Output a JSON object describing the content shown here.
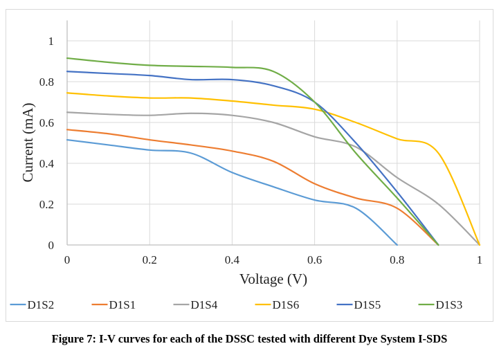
{
  "caption": "Figure 7: I-V curves for each of the DSSC tested with different Dye System I-SDS",
  "chart_data": {
    "type": "line",
    "title": "",
    "xlabel": "Voltage (V)",
    "ylabel": "Current (mA)",
    "xlim": [
      0,
      1
    ],
    "ylim": [
      0,
      1.1
    ],
    "xticks": [
      0,
      0.2,
      0.4,
      0.6,
      0.8,
      1
    ],
    "yticks": [
      0,
      0.2,
      0.4,
      0.6,
      0.8,
      1
    ],
    "xtick_labels": [
      "0",
      "0.2",
      "0.4",
      "0.6",
      "0.8",
      "1"
    ],
    "ytick_labels": [
      "0",
      "0.2",
      "0.4",
      "0.6",
      "0.8",
      "1"
    ],
    "grid": true,
    "smooth": true,
    "legend_position": "bottom",
    "series": [
      {
        "name": "D1S2",
        "color": "#5b9bd5",
        "x": [
          0,
          0.1,
          0.2,
          0.3,
          0.4,
          0.5,
          0.6,
          0.7,
          0.8
        ],
        "y": [
          0.515,
          0.49,
          0.465,
          0.45,
          0.355,
          0.285,
          0.22,
          0.18,
          0
        ]
      },
      {
        "name": "D1S1",
        "color": "#ed7d31",
        "x": [
          0,
          0.1,
          0.2,
          0.3,
          0.4,
          0.5,
          0.6,
          0.7,
          0.8,
          0.9
        ],
        "y": [
          0.565,
          0.545,
          0.515,
          0.49,
          0.46,
          0.41,
          0.3,
          0.23,
          0.18,
          0
        ]
      },
      {
        "name": "D1S4",
        "color": "#a5a5a5",
        "x": [
          0,
          0.1,
          0.2,
          0.3,
          0.4,
          0.5,
          0.6,
          0.7,
          0.8,
          0.9,
          1.0
        ],
        "y": [
          0.65,
          0.64,
          0.635,
          0.645,
          0.635,
          0.6,
          0.53,
          0.48,
          0.33,
          0.2,
          0
        ]
      },
      {
        "name": "D1S6",
        "color": "#ffc000",
        "x": [
          0,
          0.1,
          0.2,
          0.3,
          0.4,
          0.5,
          0.6,
          0.7,
          0.8,
          0.9,
          1.0
        ],
        "y": [
          0.745,
          0.73,
          0.72,
          0.72,
          0.705,
          0.685,
          0.665,
          0.6,
          0.52,
          0.45,
          0
        ]
      },
      {
        "name": "D1S5",
        "color": "#4472c4",
        "x": [
          0,
          0.1,
          0.2,
          0.3,
          0.4,
          0.5,
          0.6,
          0.7,
          0.8,
          0.9
        ],
        "y": [
          0.85,
          0.84,
          0.83,
          0.81,
          0.81,
          0.78,
          0.7,
          0.5,
          0.26,
          0
        ]
      },
      {
        "name": "D1S3",
        "color": "#70ad47",
        "x": [
          0,
          0.1,
          0.2,
          0.3,
          0.4,
          0.5,
          0.6,
          0.7,
          0.8,
          0.9
        ],
        "y": [
          0.915,
          0.895,
          0.88,
          0.875,
          0.87,
          0.85,
          0.7,
          0.45,
          0.23,
          0
        ]
      }
    ]
  }
}
